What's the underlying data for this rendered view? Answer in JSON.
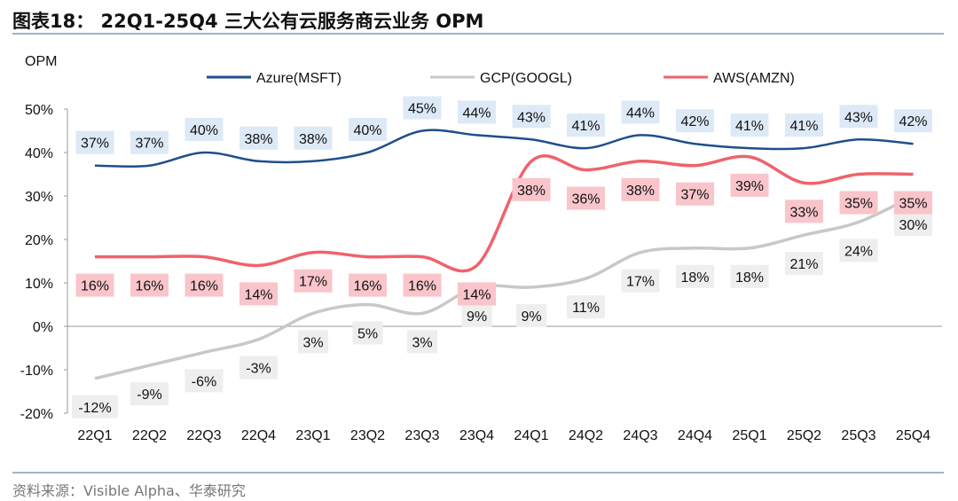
{
  "header": {
    "title": "图表18：  22Q1-25Q4 三大公有云服务商云业务 OPM"
  },
  "footer": {
    "source": "资料来源：Visible Alpha、华泰研究"
  },
  "chart_data": {
    "type": "line",
    "title": "图表18：  22Q1-25Q4 三大公有云服务商云业务 OPM",
    "ylabel": "OPM",
    "xlabel": "",
    "ylim": [
      -20,
      50
    ],
    "yticks": [
      "-20%",
      "-10%",
      "0%",
      "10%",
      "20%",
      "30%",
      "40%",
      "50%"
    ],
    "grid": false,
    "legend": "top",
    "categories": [
      "22Q1",
      "22Q2",
      "22Q3",
      "22Q4",
      "23Q1",
      "23Q2",
      "23Q3",
      "23Q4",
      "24Q1",
      "24Q2",
      "24Q3",
      "24Q4",
      "25Q1",
      "25Q2",
      "25Q3",
      "25Q4"
    ],
    "series": [
      {
        "name": "Azure(MSFT)",
        "color": "#1f4e8c",
        "label_bg": "#dde9f6",
        "values": [
          37,
          37,
          40,
          38,
          38,
          40,
          45,
          44,
          43,
          41,
          44,
          42,
          41,
          41,
          43,
          42
        ]
      },
      {
        "name": "GCP(GOOGL)",
        "color": "#c8c8c8",
        "label_bg": "#eeeeee",
        "values": [
          -12,
          -9,
          -6,
          -3,
          3,
          5,
          3,
          9,
          9,
          11,
          17,
          18,
          18,
          21,
          24,
          30
        ]
      },
      {
        "name": "AWS(AMZN)",
        "color": "#f0626b",
        "label_bg": "#f9c5ca",
        "values": [
          16,
          16,
          16,
          14,
          17,
          16,
          16,
          14,
          38,
          36,
          38,
          37,
          39,
          33,
          35,
          35
        ]
      }
    ]
  }
}
